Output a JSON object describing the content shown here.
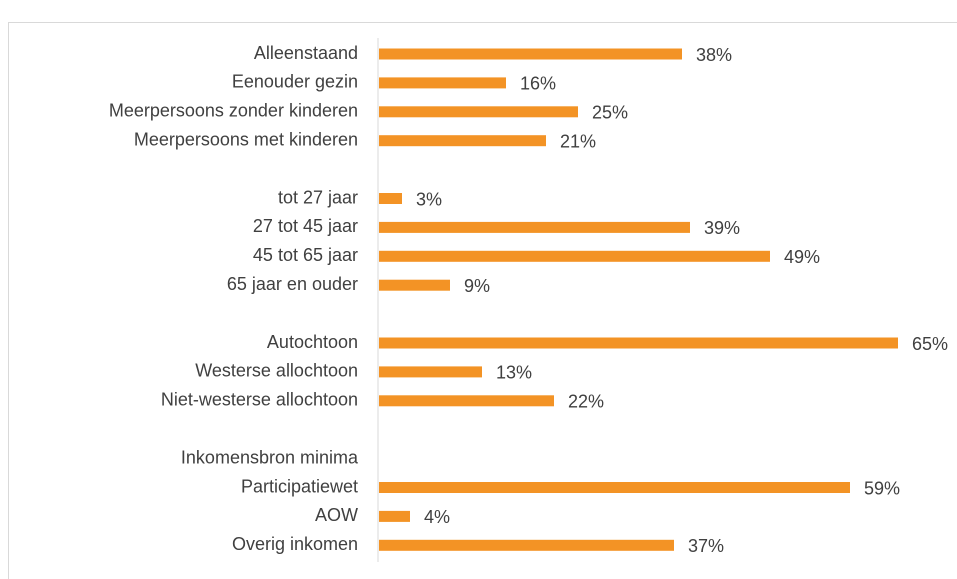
{
  "chart_data": {
    "type": "barh",
    "categories": [
      "Alleenstaand",
      "Eenouder gezin",
      "Meerpersoons zonder kinderen",
      "Meerpersoons met kinderen",
      null,
      "tot 27 jaar",
      "27 tot 45 jaar",
      "45 tot 65 jaar",
      "65 jaar en ouder",
      null,
      "Autochtoon",
      "Westerse allochtoon",
      "Niet-westerse allochtoon",
      null,
      "Inkomensbron minima",
      "Participatiewet",
      "AOW",
      "Overig inkomen"
    ],
    "values": [
      38,
      16,
      25,
      21,
      null,
      3,
      39,
      49,
      9,
      null,
      65,
      13,
      22,
      null,
      null,
      59,
      4,
      37
    ],
    "value_labels": [
      "38%",
      "16%",
      "25%",
      "21%",
      null,
      "3%",
      "39%",
      "49%",
      "9%",
      null,
      "65%",
      "13%",
      "22%",
      null,
      null,
      "59%",
      "4%",
      "37%"
    ],
    "color": "#f39325"
  }
}
